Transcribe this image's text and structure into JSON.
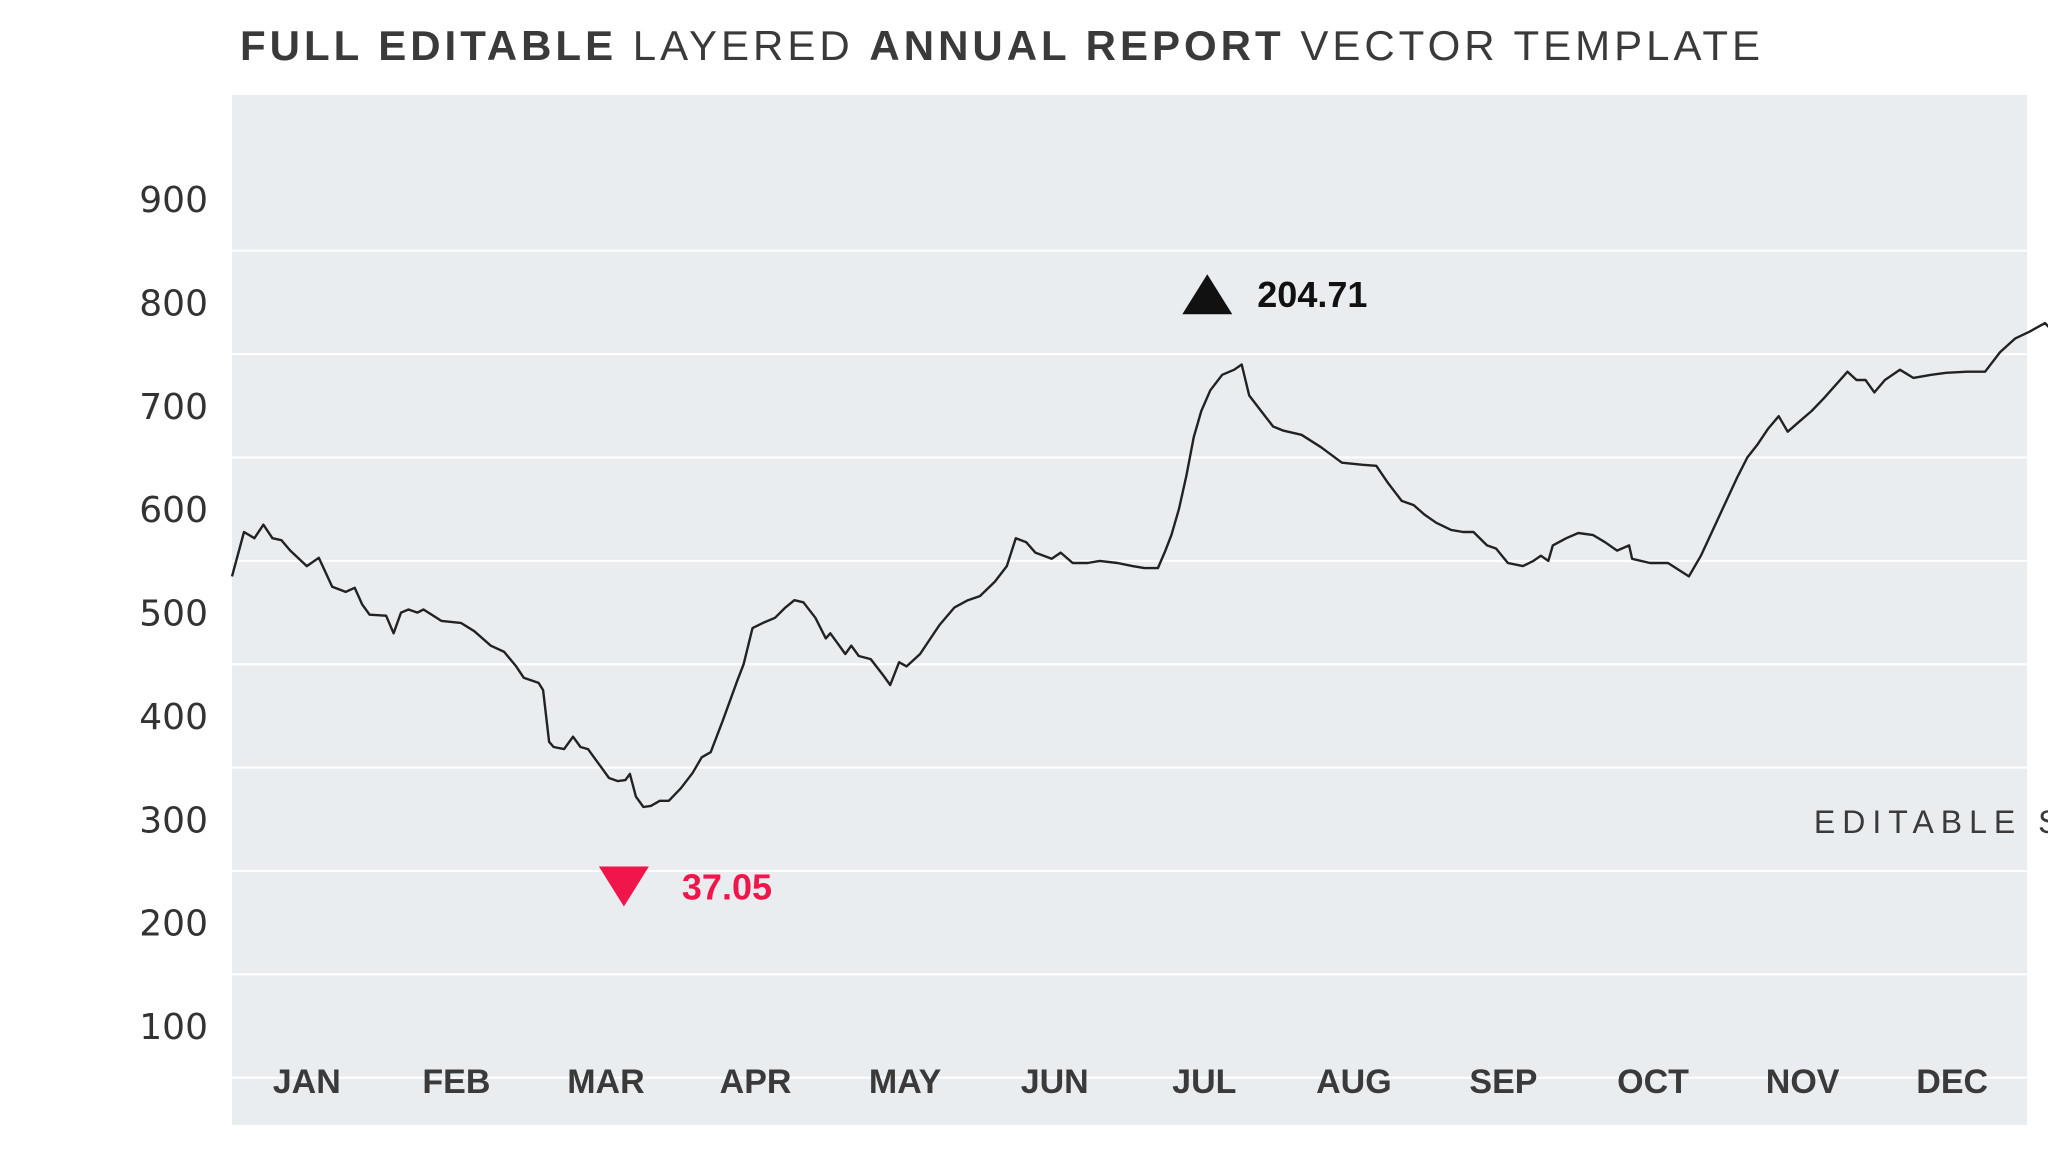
{
  "title": {
    "part1": "FULL EDITABLE",
    "part2": "LAYERED",
    "part3": "ANNUAL REPORT",
    "part4": "VECTOR TEMPLATE"
  },
  "colors": {
    "background": "#ffffff",
    "plot_bg": "#eaedf0",
    "gridline": "#ffffff",
    "line": "#222222",
    "up": "#111111",
    "down": "#f0154a"
  },
  "chart_data": {
    "type": "line",
    "title": "FULL EDITABLE LAYERED ANNUAL REPORT VECTOR TEMPLATE",
    "xlabel": "",
    "ylabel": "",
    "ylim": [
      0,
      1000
    ],
    "yticks": [
      900,
      800,
      700,
      600,
      500,
      400,
      300,
      200,
      100
    ],
    "grid": true,
    "categories": [
      "JAN",
      "FEB",
      "MAR",
      "APR",
      "MAY",
      "JUN",
      "JUL",
      "AUG",
      "SEP",
      "OCT",
      "NOV",
      "DEC"
    ],
    "x_range": [
      0,
      12
    ],
    "series": [
      {
        "name": "value",
        "points": [
          [
            0.0,
            535
          ],
          [
            0.08,
            578
          ],
          [
            0.15,
            572
          ],
          [
            0.21,
            585
          ],
          [
            0.27,
            572
          ],
          [
            0.33,
            570
          ],
          [
            0.39,
            560
          ],
          [
            0.5,
            545
          ],
          [
            0.58,
            553
          ],
          [
            0.67,
            525
          ],
          [
            0.76,
            520
          ],
          [
            0.82,
            524
          ],
          [
            0.87,
            508
          ],
          [
            0.92,
            498
          ],
          [
            1.03,
            497
          ],
          [
            1.08,
            480
          ],
          [
            1.13,
            500
          ],
          [
            1.18,
            503
          ],
          [
            1.24,
            500
          ],
          [
            1.28,
            503
          ],
          [
            1.4,
            492
          ],
          [
            1.53,
            490
          ],
          [
            1.62,
            482
          ],
          [
            1.73,
            468
          ],
          [
            1.82,
            462
          ],
          [
            1.9,
            448
          ],
          [
            1.95,
            437
          ],
          [
            2.05,
            432
          ],
          [
            2.08,
            425
          ],
          [
            2.12,
            375
          ],
          [
            2.15,
            370
          ],
          [
            2.22,
            368
          ],
          [
            2.28,
            380
          ],
          [
            2.33,
            370
          ],
          [
            2.38,
            368
          ],
          [
            2.46,
            352
          ],
          [
            2.52,
            340
          ],
          [
            2.58,
            337
          ],
          [
            2.63,
            338
          ],
          [
            2.66,
            344
          ],
          [
            2.7,
            322
          ],
          [
            2.75,
            312
          ],
          [
            2.8,
            313
          ],
          [
            2.86,
            318
          ],
          [
            2.92,
            318
          ],
          [
            3.0,
            330
          ],
          [
            3.08,
            345
          ],
          [
            3.14,
            360
          ],
          [
            3.2,
            365
          ],
          [
            3.28,
            395
          ],
          [
            3.38,
            435
          ],
          [
            3.42,
            450
          ],
          [
            3.48,
            485
          ],
          [
            3.55,
            490
          ],
          [
            3.63,
            495
          ],
          [
            3.7,
            505
          ],
          [
            3.76,
            512
          ],
          [
            3.82,
            510
          ],
          [
            3.9,
            495
          ],
          [
            3.97,
            475
          ],
          [
            4.0,
            480
          ],
          [
            4.05,
            470
          ],
          [
            4.1,
            460
          ],
          [
            4.14,
            468
          ],
          [
            4.19,
            458
          ],
          [
            4.27,
            455
          ],
          [
            4.35,
            440
          ],
          [
            4.4,
            430
          ],
          [
            4.46,
            452
          ],
          [
            4.51,
            448
          ],
          [
            4.6,
            460
          ],
          [
            4.66,
            473
          ],
          [
            4.73,
            488
          ],
          [
            4.83,
            505
          ],
          [
            4.92,
            512
          ],
          [
            5.0,
            516
          ],
          [
            5.1,
            530
          ],
          [
            5.18,
            545
          ],
          [
            5.24,
            572
          ],
          [
            5.31,
            568
          ],
          [
            5.37,
            558
          ],
          [
            5.48,
            552
          ],
          [
            5.54,
            558
          ],
          [
            5.62,
            548
          ],
          [
            5.72,
            548
          ],
          [
            5.8,
            550
          ],
          [
            5.92,
            548
          ],
          [
            6.02,
            545
          ],
          [
            6.1,
            543
          ],
          [
            6.19,
            543
          ],
          [
            6.24,
            560
          ],
          [
            6.28,
            575
          ],
          [
            6.33,
            600
          ],
          [
            6.38,
            632
          ],
          [
            6.43,
            670
          ],
          [
            6.48,
            695
          ],
          [
            6.54,
            715
          ],
          [
            6.62,
            730
          ],
          [
            6.7,
            735
          ],
          [
            6.75,
            740
          ],
          [
            6.8,
            710
          ],
          [
            6.88,
            695
          ],
          [
            6.96,
            680
          ],
          [
            7.03,
            676
          ],
          [
            7.15,
            672
          ],
          [
            7.28,
            660
          ],
          [
            7.42,
            645
          ],
          [
            7.56,
            643
          ],
          [
            7.65,
            642
          ],
          [
            7.73,
            625
          ],
          [
            7.82,
            608
          ],
          [
            7.9,
            604
          ],
          [
            7.97,
            595
          ],
          [
            8.05,
            587
          ],
          [
            8.15,
            580
          ],
          [
            8.23,
            578
          ],
          [
            8.3,
            578
          ],
          [
            8.39,
            565
          ],
          [
            8.45,
            562
          ],
          [
            8.53,
            548
          ],
          [
            8.63,
            545
          ],
          [
            8.7,
            550
          ],
          [
            8.75,
            555
          ],
          [
            8.8,
            550
          ],
          [
            8.83,
            565
          ],
          [
            8.92,
            572
          ],
          [
            9.0,
            577
          ],
          [
            9.1,
            575
          ],
          [
            9.18,
            568
          ],
          [
            9.26,
            560
          ],
          [
            9.34,
            565
          ],
          [
            9.36,
            552
          ],
          [
            9.48,
            548
          ],
          [
            9.6,
            548
          ],
          [
            9.74,
            535
          ],
          [
            9.82,
            555
          ],
          [
            9.9,
            580
          ],
          [
            9.98,
            605
          ],
          [
            10.06,
            630
          ],
          [
            10.13,
            650
          ],
          [
            10.2,
            663
          ],
          [
            10.27,
            678
          ],
          [
            10.34,
            690
          ],
          [
            10.4,
            675
          ],
          [
            10.48,
            685
          ],
          [
            10.56,
            695
          ],
          [
            10.64,
            707
          ],
          [
            10.72,
            720
          ],
          [
            10.8,
            733
          ],
          [
            10.86,
            725
          ],
          [
            10.92,
            725
          ],
          [
            10.98,
            713
          ],
          [
            11.05,
            725
          ],
          [
            11.15,
            735
          ],
          [
            11.24,
            727
          ],
          [
            11.36,
            730
          ],
          [
            11.46,
            732
          ],
          [
            11.6,
            733
          ],
          [
            11.72,
            733
          ],
          [
            11.82,
            752
          ],
          [
            11.92,
            765
          ],
          [
            12.02,
            772
          ],
          [
            12.12,
            780
          ],
          [
            12.22,
            765
          ],
          [
            12.38,
            770
          ],
          [
            12.45,
            773
          ],
          [
            12.52,
            760
          ],
          [
            12.6,
            752
          ]
        ]
      }
    ],
    "annotations": [
      {
        "label": "204.71",
        "direction": "up",
        "at": [
          6.52,
          808
        ]
      },
      {
        "label": "37.05",
        "direction": "down",
        "at": [
          2.62,
          235
        ]
      },
      {
        "label": "EDITABLE STROKES",
        "at": [
          12.0,
          287
        ]
      }
    ]
  }
}
